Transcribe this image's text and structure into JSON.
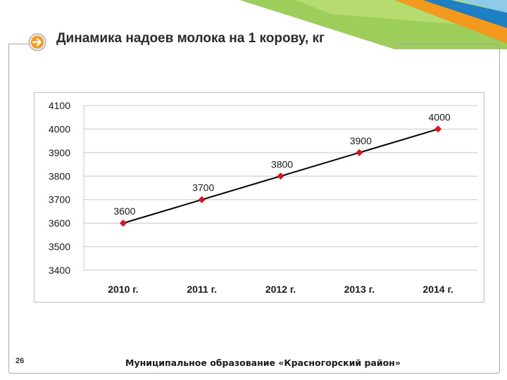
{
  "slide": {
    "title": "Динамика надоев молока на 1 корову, кг",
    "page_number": "26",
    "footer": "Муниципальное образование «Красногорский район»",
    "title_icon": "arrow-right-icon"
  },
  "colors": {
    "accent_green": "#8cc63e",
    "accent_blue": "#1f7fc4",
    "accent_orange": "#f39a1e",
    "marker_red": "#d9121e",
    "line_black": "#000000"
  },
  "chart_data": {
    "type": "line",
    "title": "",
    "xlabel": "",
    "ylabel": "",
    "categories": [
      "2010 г.",
      "2011 г.",
      "2012 г.",
      "2013 г.",
      "2014 г."
    ],
    "series": [
      {
        "values": [
          3600,
          3700,
          3800,
          3900,
          4000
        ]
      }
    ],
    "data_labels": [
      "3600",
      "3700",
      "3800",
      "3900",
      "4000"
    ],
    "y_ticks": [
      "4100",
      "4000",
      "3900",
      "3800",
      "3700",
      "3600",
      "3500",
      "3400"
    ],
    "ylim": [
      3400,
      4100
    ],
    "grid": true,
    "legend": "none"
  }
}
